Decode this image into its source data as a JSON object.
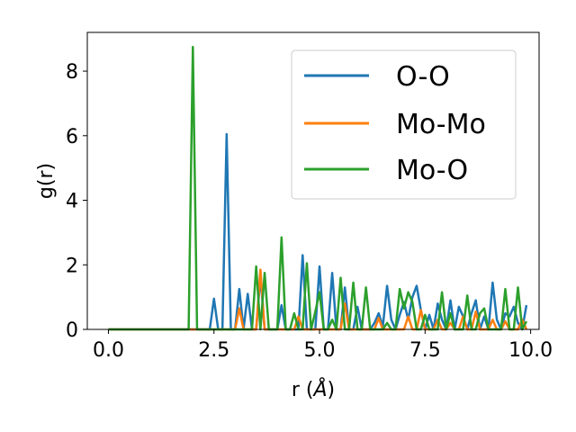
{
  "chart_data": {
    "type": "line",
    "title": "",
    "xlabel": "r (",
    "xlabel_unit": "Å",
    "xlabel_close": ")",
    "ylabel": "g(r)",
    "xlim": [
      -0.5,
      10.2
    ],
    "ylim": [
      0,
      9.2
    ],
    "xticks": [
      0.0,
      2.5,
      5.0,
      7.5,
      10.0
    ],
    "xtick_labels": [
      "0.0",
      "2.5",
      "5.0",
      "7.5",
      "10.0"
    ],
    "yticks": [
      0,
      2,
      4,
      6,
      8
    ],
    "ytick_labels": [
      "0",
      "2",
      "4",
      "6",
      "8"
    ],
    "grid": false,
    "legend_position": "top-right",
    "series": [
      {
        "name": "O-O",
        "color": "#1f77b4",
        "x": [
          0.0,
          2.4,
          2.5,
          2.6,
          2.7,
          2.8,
          2.9,
          3.0,
          3.1,
          3.2,
          3.3,
          3.4,
          3.5,
          3.6,
          3.7,
          3.8,
          3.9,
          4.0,
          4.1,
          4.2,
          4.3,
          4.4,
          4.5,
          4.6,
          4.7,
          4.8,
          4.9,
          5.0,
          5.1,
          5.2,
          5.3,
          5.4,
          5.5,
          5.6,
          5.7,
          5.8,
          5.9,
          6.0,
          6.1,
          6.2,
          6.3,
          6.4,
          6.5,
          6.6,
          6.7,
          6.8,
          6.9,
          7.0,
          7.1,
          7.2,
          7.3,
          7.4,
          7.5,
          7.6,
          7.7,
          7.8,
          7.9,
          8.0,
          8.1,
          8.2,
          8.3,
          8.4,
          8.5,
          8.6,
          8.7,
          8.8,
          8.9,
          9.0,
          9.1,
          9.2,
          9.3,
          9.4,
          9.5,
          9.6,
          9.7,
          9.8,
          9.9
        ],
        "y": [
          0.0,
          0.0,
          0.95,
          0.0,
          0.0,
          6.05,
          0.0,
          0.0,
          1.25,
          0.0,
          1.1,
          0.0,
          0.0,
          1.65,
          0.0,
          0.0,
          0.0,
          0.0,
          0.75,
          0.0,
          0.0,
          0.0,
          0.0,
          2.3,
          0.0,
          0.0,
          0.0,
          1.95,
          0.0,
          0.0,
          1.75,
          0.0,
          0.0,
          1.3,
          0.0,
          0.0,
          0.7,
          0.0,
          0.0,
          0.0,
          0.2,
          0.5,
          0.1,
          1.35,
          0.3,
          0.0,
          0.45,
          0.85,
          0.3,
          1.0,
          1.35,
          0.6,
          0.0,
          0.45,
          0.0,
          0.8,
          0.3,
          0.0,
          0.9,
          0.0,
          0.7,
          0.4,
          0.0,
          0.5,
          0.9,
          0.0,
          0.4,
          0.0,
          1.45,
          0.3,
          0.0,
          0.5,
          0.4,
          0.7,
          0.2,
          0.0,
          0.75
        ]
      },
      {
        "name": "Mo-Mo",
        "color": "#ff7f0e",
        "x": [
          0.0,
          3.0,
          3.1,
          3.2,
          3.3,
          3.4,
          3.5,
          3.6,
          3.7,
          3.8,
          3.9,
          4.4,
          4.5,
          4.6,
          4.7,
          5.4,
          5.5,
          5.6,
          5.7,
          5.8,
          5.9,
          6.3,
          6.4,
          6.5,
          6.6,
          6.7,
          6.8,
          7.0,
          7.1,
          7.2,
          7.3,
          7.4,
          7.5,
          7.6,
          7.7,
          7.8,
          7.9,
          8.0,
          8.1,
          8.2,
          8.3,
          8.4,
          8.5,
          8.6,
          8.7,
          8.8,
          8.9,
          9.0,
          9.1,
          9.2,
          9.3,
          9.4,
          9.5,
          9.6,
          9.7,
          9.8,
          9.9
        ],
        "y": [
          0.0,
          0.0,
          0.65,
          0.0,
          0.0,
          0.0,
          0.0,
          1.85,
          0.0,
          0.0,
          0.0,
          0.0,
          0.4,
          0.0,
          0.0,
          0.0,
          0.0,
          0.8,
          0.0,
          0.0,
          0.0,
          0.0,
          0.35,
          0.0,
          0.0,
          0.0,
          0.0,
          0.0,
          0.4,
          0.0,
          0.0,
          0.6,
          0.0,
          0.0,
          0.0,
          0.3,
          0.0,
          0.0,
          0.2,
          0.0,
          0.0,
          0.4,
          0.0,
          0.0,
          0.55,
          0.0,
          0.0,
          0.0,
          0.3,
          0.0,
          0.0,
          0.25,
          0.0,
          0.0,
          0.0,
          0.3,
          0.0
        ]
      },
      {
        "name": "Mo-O",
        "color": "#2ca02c",
        "x": [
          0.0,
          1.9,
          2.0,
          2.1,
          2.2,
          3.0,
          3.1,
          3.2,
          3.3,
          3.4,
          3.5,
          3.6,
          3.7,
          3.8,
          3.9,
          4.0,
          4.1,
          4.2,
          4.3,
          4.4,
          4.5,
          4.6,
          4.7,
          4.8,
          4.9,
          5.0,
          5.1,
          5.2,
          5.3,
          5.4,
          5.5,
          5.6,
          5.7,
          5.8,
          5.9,
          6.0,
          6.1,
          6.2,
          6.3,
          6.4,
          6.5,
          6.6,
          6.7,
          6.8,
          6.9,
          7.0,
          7.1,
          7.2,
          7.3,
          7.4,
          7.5,
          7.6,
          7.7,
          7.8,
          7.9,
          8.0,
          8.1,
          8.2,
          8.3,
          8.4,
          8.5,
          8.6,
          8.7,
          8.8,
          8.9,
          9.0,
          9.1,
          9.2,
          9.3,
          9.4,
          9.5,
          9.6,
          9.7,
          9.8,
          9.9
        ],
        "y": [
          0.0,
          0.0,
          8.75,
          0.0,
          0.0,
          0.0,
          0.0,
          0.0,
          0.0,
          0.0,
          1.95,
          0.0,
          1.75,
          0.0,
          0.0,
          0.0,
          2.85,
          0.0,
          0.0,
          0.5,
          0.0,
          0.0,
          2.05,
          0.0,
          0.55,
          1.15,
          0.0,
          0.0,
          0.3,
          0.0,
          1.6,
          0.0,
          0.0,
          1.45,
          0.0,
          0.0,
          1.3,
          0.0,
          0.0,
          0.0,
          0.0,
          0.2,
          0.0,
          0.0,
          1.25,
          0.65,
          1.15,
          0.85,
          0.0,
          0.0,
          0.45,
          0.0,
          0.0,
          0.0,
          1.15,
          0.0,
          0.5,
          0.0,
          0.0,
          0.0,
          1.05,
          0.0,
          0.0,
          0.5,
          0.65,
          0.0,
          0.0,
          0.0,
          0.0,
          1.25,
          0.0,
          0.0,
          1.3,
          0.0,
          0.25
        ]
      }
    ]
  }
}
